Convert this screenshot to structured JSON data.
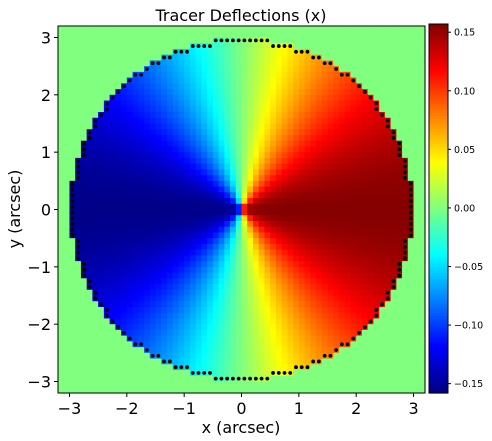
{
  "chart_data": {
    "type": "heatmap",
    "title": "Tracer Deflections (x)",
    "xlabel": "x (arcsec)",
    "ylabel": "y (arcsec)",
    "xlim": [
      -3.2,
      3.2
    ],
    "ylim": [
      -3.2,
      3.2
    ],
    "x_ticks": [
      -3,
      -2,
      -1,
      0,
      1,
      2,
      3
    ],
    "y_ticks": [
      -3,
      -2,
      -1,
      0,
      1,
      2,
      3
    ],
    "x_tick_labels": [
      "−3",
      "−2",
      "−1",
      "0",
      "1",
      "2",
      "3"
    ],
    "y_tick_labels": [
      "−3",
      "−2",
      "−1",
      "0",
      "1",
      "2",
      "3"
    ],
    "grid": false,
    "colormap": "jet",
    "grid_resolution": 64,
    "mask_radius": 3.0,
    "masked_value": 0.0,
    "field": "deflection_x = 0.155 * x / sqrt(x^2 + y^2) inside mask, 0 outside",
    "colorbar": {
      "vmin": -0.158,
      "vmax": 0.157,
      "ticks": [
        0.15,
        0.1,
        0.05,
        0.0,
        -0.05,
        -0.1,
        -0.15
      ],
      "tick_labels": [
        "0.15",
        "0.10",
        "0.05",
        "0.00",
        "−0.05",
        "−0.10",
        "−0.15"
      ]
    },
    "border_markers": {
      "color": "#000000",
      "shape": "circle",
      "description": "black dots tracing the circular mask boundary"
    }
  }
}
